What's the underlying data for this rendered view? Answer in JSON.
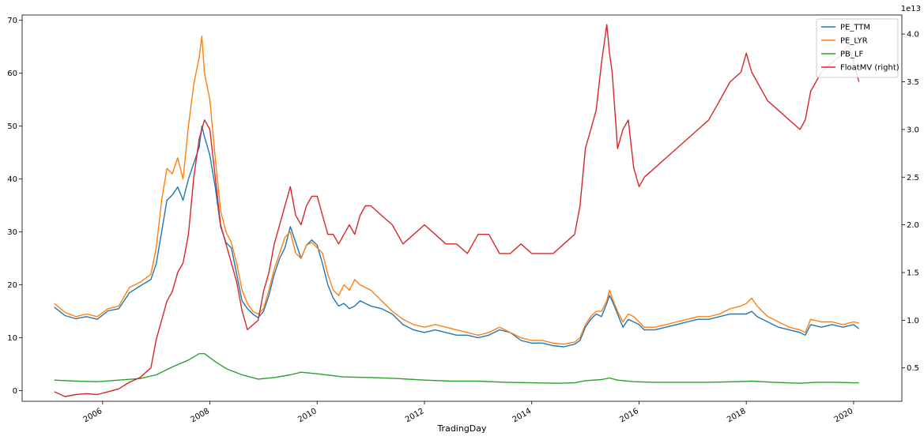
{
  "chart_data": {
    "type": "line",
    "xlabel": "TradingDay",
    "left_axis": {
      "ylim": [
        -2,
        71
      ],
      "ticks": [
        0,
        10,
        20,
        30,
        40,
        50,
        60,
        70
      ],
      "tick_labels": [
        "0",
        "10",
        "20",
        "30",
        "40",
        "50",
        "60",
        "70"
      ]
    },
    "right_axis": {
      "ylim": [
        0.15,
        4.2
      ],
      "ticks": [
        0.5,
        1.0,
        1.5,
        2.0,
        2.5,
        3.0,
        3.5,
        4.0
      ],
      "tick_labels": [
        "0.5",
        "1.0",
        "1.5",
        "2.0",
        "2.5",
        "3.0",
        "3.5",
        "4.0"
      ],
      "offset_label": "1e13"
    },
    "xlim": [
      2004.5,
      2020.9
    ],
    "x_ticks": [
      2006,
      2008,
      2010,
      2012,
      2014,
      2016,
      2018,
      2020
    ],
    "x_tick_labels": [
      "2006",
      "2008",
      "2010",
      "2012",
      "2014",
      "2016",
      "2018",
      "2020"
    ],
    "legend_position": "top-right",
    "grid": false,
    "series": [
      {
        "name": "PE_TTM",
        "axis": "left",
        "color": "#1f77b4",
        "x": [
          2005.1,
          2005.3,
          2005.5,
          2005.7,
          2005.9,
          2006.1,
          2006.3,
          2006.5,
          2006.7,
          2006.9,
          2007.0,
          2007.1,
          2007.2,
          2007.3,
          2007.4,
          2007.5,
          2007.6,
          2007.7,
          2007.8,
          2007.85,
          2007.9,
          2008.0,
          2008.1,
          2008.2,
          2008.3,
          2008.4,
          2008.5,
          2008.6,
          2008.7,
          2008.8,
          2008.9,
          2009.0,
          2009.1,
          2009.2,
          2009.3,
          2009.4,
          2009.5,
          2009.6,
          2009.7,
          2009.8,
          2009.9,
          2010.0,
          2010.1,
          2010.2,
          2010.3,
          2010.4,
          2010.5,
          2010.6,
          2010.7,
          2010.8,
          2010.9,
          2011.0,
          2011.2,
          2011.4,
          2011.6,
          2011.8,
          2012.0,
          2012.2,
          2012.4,
          2012.6,
          2012.8,
          2013.0,
          2013.2,
          2013.4,
          2013.6,
          2013.8,
          2014.0,
          2014.2,
          2014.4,
          2014.6,
          2014.8,
          2014.9,
          2015.0,
          2015.1,
          2015.2,
          2015.3,
          2015.4,
          2015.45,
          2015.5,
          2015.6,
          2015.7,
          2015.8,
          2015.9,
          2016.0,
          2016.1,
          2016.3,
          2016.5,
          2016.7,
          2016.9,
          2017.1,
          2017.3,
          2017.5,
          2017.7,
          2017.9,
          2018.0,
          2018.1,
          2018.2,
          2018.4,
          2018.6,
          2018.8,
          2019.0,
          2019.1,
          2019.2,
          2019.4,
          2019.6,
          2019.8,
          2020.0,
          2020.1
        ],
        "y": [
          15.8,
          14.2,
          13.6,
          14.0,
          13.5,
          15.1,
          15.5,
          18.5,
          19.8,
          21.0,
          24.0,
          30.0,
          36.0,
          37.0,
          38.5,
          36.0,
          40.0,
          43.0,
          46.0,
          50.0,
          48.0,
          44.5,
          38.5,
          31.0,
          28.0,
          27.0,
          22.0,
          17.0,
          15.5,
          14.5,
          13.8,
          15.0,
          18.0,
          22.0,
          25.0,
          27.0,
          31.0,
          28.0,
          25.0,
          27.5,
          28.5,
          27.5,
          24.0,
          20.0,
          17.5,
          16.0,
          16.5,
          15.5,
          16.0,
          17.0,
          16.5,
          16.0,
          15.5,
          14.5,
          12.5,
          11.5,
          11.0,
          11.5,
          11.0,
          10.5,
          10.5,
          10.0,
          10.5,
          11.5,
          11.0,
          9.5,
          9.0,
          9.0,
          8.5,
          8.3,
          8.8,
          9.5,
          12.0,
          13.5,
          14.5,
          14.0,
          16.5,
          18.0,
          17.0,
          14.5,
          12.0,
          13.5,
          13.0,
          12.5,
          11.5,
          11.5,
          12.0,
          12.5,
          13.0,
          13.5,
          13.5,
          14.0,
          14.5,
          14.5,
          14.5,
          15.0,
          14.0,
          13.0,
          12.0,
          11.5,
          11.0,
          10.5,
          12.5,
          12.0,
          12.5,
          12.0,
          12.5,
          11.7
        ]
      },
      {
        "name": "PE_LYR",
        "axis": "left",
        "color": "#ff7f0e",
        "x": [
          2005.1,
          2005.3,
          2005.5,
          2005.7,
          2005.9,
          2006.1,
          2006.3,
          2006.5,
          2006.7,
          2006.9,
          2007.0,
          2007.1,
          2007.2,
          2007.3,
          2007.4,
          2007.5,
          2007.6,
          2007.7,
          2007.8,
          2007.85,
          2007.9,
          2008.0,
          2008.1,
          2008.2,
          2008.3,
          2008.4,
          2008.5,
          2008.6,
          2008.7,
          2008.8,
          2008.9,
          2009.0,
          2009.1,
          2009.2,
          2009.3,
          2009.4,
          2009.5,
          2009.6,
          2009.7,
          2009.8,
          2009.9,
          2010.0,
          2010.1,
          2010.2,
          2010.3,
          2010.4,
          2010.5,
          2010.6,
          2010.7,
          2010.8,
          2010.9,
          2011.0,
          2011.2,
          2011.4,
          2011.6,
          2011.8,
          2012.0,
          2012.2,
          2012.4,
          2012.6,
          2012.8,
          2013.0,
          2013.2,
          2013.4,
          2013.6,
          2013.8,
          2014.0,
          2014.2,
          2014.4,
          2014.6,
          2014.8,
          2014.9,
          2015.0,
          2015.1,
          2015.2,
          2015.3,
          2015.4,
          2015.45,
          2015.5,
          2015.6,
          2015.7,
          2015.8,
          2015.9,
          2016.0,
          2016.1,
          2016.3,
          2016.5,
          2016.7,
          2016.9,
          2017.1,
          2017.3,
          2017.5,
          2017.7,
          2017.9,
          2018.0,
          2018.1,
          2018.2,
          2018.4,
          2018.6,
          2018.8,
          2019.0,
          2019.1,
          2019.2,
          2019.4,
          2019.6,
          2019.8,
          2020.0,
          2020.1
        ],
        "y": [
          16.5,
          14.8,
          14.0,
          14.5,
          14.0,
          15.5,
          16.0,
          19.5,
          20.5,
          22.0,
          27.0,
          36.0,
          42.0,
          41.0,
          44.0,
          40.0,
          50.0,
          58.0,
          63.0,
          67.0,
          60.0,
          55.0,
          44.0,
          34.0,
          30.0,
          28.0,
          24.0,
          19.0,
          16.5,
          15.0,
          14.5,
          15.5,
          19.0,
          23.0,
          26.0,
          29.0,
          30.0,
          26.0,
          25.0,
          27.5,
          28.0,
          27.0,
          26.0,
          22.0,
          19.0,
          18.0,
          20.0,
          19.0,
          21.0,
          20.0,
          19.5,
          19.0,
          17.0,
          15.0,
          13.5,
          12.5,
          12.0,
          12.5,
          12.0,
          11.5,
          11.0,
          10.5,
          11.0,
          12.0,
          11.0,
          10.0,
          9.5,
          9.5,
          9.0,
          8.8,
          9.2,
          10.0,
          12.5,
          14.0,
          15.0,
          15.0,
          17.0,
          19.0,
          17.5,
          15.0,
          13.0,
          14.5,
          14.0,
          13.0,
          12.0,
          12.0,
          12.5,
          13.0,
          13.5,
          14.0,
          14.0,
          14.5,
          15.5,
          16.0,
          16.5,
          17.5,
          16.0,
          14.0,
          13.0,
          12.0,
          11.5,
          11.0,
          13.5,
          13.0,
          13.0,
          12.5,
          13.0,
          12.8
        ]
      },
      {
        "name": "PB_LF",
        "axis": "left",
        "color": "#2ca02c",
        "x": [
          2005.1,
          2005.5,
          2005.9,
          2006.3,
          2006.7,
          2007.0,
          2007.3,
          2007.6,
          2007.8,
          2007.9,
          2008.1,
          2008.3,
          2008.6,
          2008.9,
          2009.2,
          2009.5,
          2009.7,
          2010.0,
          2010.5,
          2011.0,
          2011.5,
          2012.0,
          2012.5,
          2013.0,
          2013.5,
          2014.0,
          2014.5,
          2014.8,
          2015.0,
          2015.3,
          2015.45,
          2015.6,
          2015.9,
          2016.3,
          2016.8,
          2017.3,
          2017.8,
          2018.1,
          2018.5,
          2019.0,
          2019.3,
          2019.6,
          2020.0,
          2020.1
        ],
        "y": [
          2.0,
          1.8,
          1.7,
          2.0,
          2.3,
          3.0,
          4.5,
          5.8,
          7.0,
          7.0,
          5.5,
          4.2,
          3.0,
          2.2,
          2.5,
          3.0,
          3.5,
          3.2,
          2.6,
          2.5,
          2.3,
          2.0,
          1.8,
          1.8,
          1.6,
          1.5,
          1.4,
          1.5,
          1.9,
          2.1,
          2.4,
          2.0,
          1.7,
          1.6,
          1.6,
          1.6,
          1.7,
          1.8,
          1.6,
          1.4,
          1.6,
          1.6,
          1.5,
          1.5
        ]
      },
      {
        "name": "FloatMV (right)",
        "axis": "right",
        "color": "#d62728",
        "x": [
          2005.1,
          2005.3,
          2005.5,
          2005.7,
          2005.9,
          2006.1,
          2006.3,
          2006.5,
          2006.7,
          2006.9,
          2007.0,
          2007.1,
          2007.2,
          2007.3,
          2007.4,
          2007.5,
          2007.6,
          2007.7,
          2007.8,
          2007.9,
          2008.0,
          2008.1,
          2008.2,
          2008.3,
          2008.4,
          2008.5,
          2008.6,
          2008.7,
          2008.8,
          2008.9,
          2009.0,
          2009.1,
          2009.2,
          2009.3,
          2009.4,
          2009.5,
          2009.6,
          2009.7,
          2009.8,
          2009.9,
          2010.0,
          2010.1,
          2010.2,
          2010.3,
          2010.4,
          2010.5,
          2010.6,
          2010.7,
          2010.8,
          2010.9,
          2011.0,
          2011.2,
          2011.4,
          2011.6,
          2011.8,
          2012.0,
          2012.2,
          2012.4,
          2012.6,
          2012.8,
          2013.0,
          2013.2,
          2013.4,
          2013.6,
          2013.8,
          2014.0,
          2014.2,
          2014.4,
          2014.6,
          2014.8,
          2014.9,
          2015.0,
          2015.1,
          2015.2,
          2015.3,
          2015.4,
          2015.45,
          2015.5,
          2015.6,
          2015.7,
          2015.8,
          2015.9,
          2016.0,
          2016.1,
          2016.3,
          2016.5,
          2016.7,
          2016.9,
          2017.1,
          2017.3,
          2017.5,
          2017.7,
          2017.9,
          2018.0,
          2018.1,
          2018.2,
          2018.4,
          2018.6,
          2018.8,
          2019.0,
          2019.1,
          2019.2,
          2019.4,
          2019.6,
          2019.8,
          2019.9,
          2020.0,
          2020.1
        ],
        "y": [
          0.25,
          0.2,
          0.22,
          0.23,
          0.22,
          0.25,
          0.28,
          0.35,
          0.4,
          0.5,
          0.8,
          1.0,
          1.2,
          1.3,
          1.5,
          1.6,
          1.9,
          2.5,
          2.9,
          3.1,
          3.0,
          2.5,
          2.0,
          1.8,
          1.6,
          1.4,
          1.1,
          0.9,
          0.95,
          1.0,
          1.3,
          1.5,
          1.8,
          2.0,
          2.2,
          2.4,
          2.1,
          2.0,
          2.2,
          2.3,
          2.3,
          2.1,
          1.9,
          1.9,
          1.8,
          1.9,
          2.0,
          1.9,
          2.1,
          2.2,
          2.2,
          2.1,
          2.0,
          1.8,
          1.9,
          2.0,
          1.9,
          1.8,
          1.8,
          1.7,
          1.9,
          1.9,
          1.7,
          1.7,
          1.8,
          1.7,
          1.7,
          1.7,
          1.8,
          1.9,
          2.2,
          2.8,
          3.0,
          3.2,
          3.7,
          4.1,
          3.8,
          3.6,
          2.8,
          3.0,
          3.1,
          2.6,
          2.4,
          2.5,
          2.6,
          2.7,
          2.8,
          2.9,
          3.0,
          3.1,
          3.3,
          3.5,
          3.6,
          3.8,
          3.6,
          3.5,
          3.3,
          3.2,
          3.1,
          3.0,
          3.1,
          3.4,
          3.6,
          3.7,
          3.8,
          3.9,
          3.7,
          3.5
        ]
      }
    ]
  }
}
